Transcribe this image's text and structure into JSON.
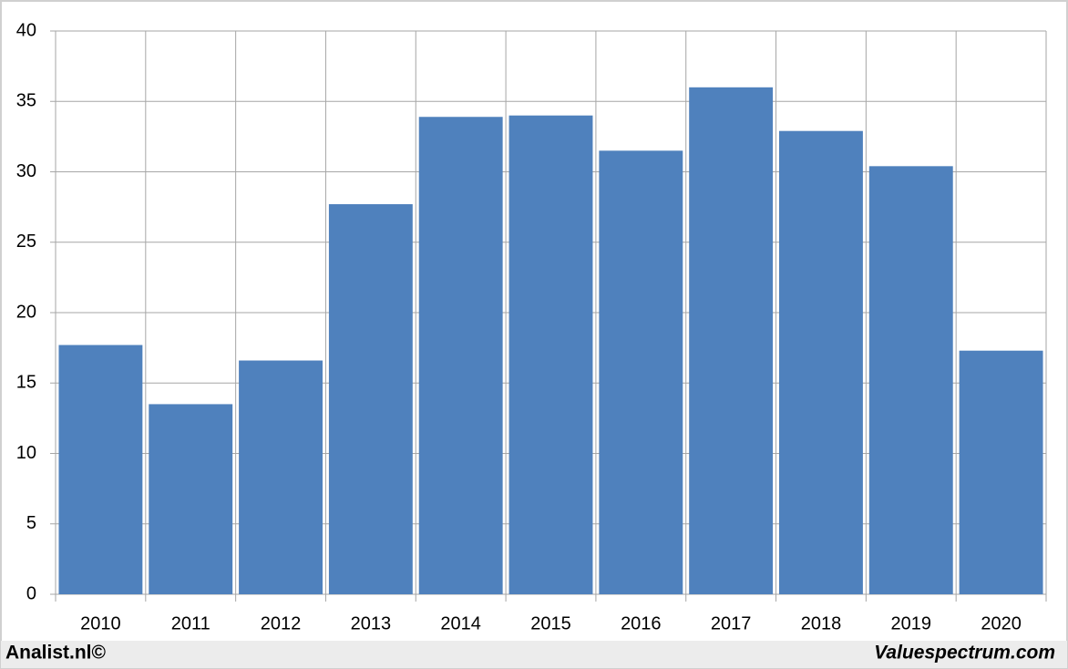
{
  "chart_data": {
    "type": "bar",
    "categories": [
      "2010",
      "2011",
      "2012",
      "2013",
      "2014",
      "2015",
      "2016",
      "2017",
      "2018",
      "2019",
      "2020"
    ],
    "values": [
      17.7,
      13.5,
      16.6,
      27.7,
      33.9,
      34.0,
      31.5,
      36.0,
      32.9,
      30.4,
      17.3
    ],
    "color": "#4f81bd",
    "ylim": [
      0,
      40
    ],
    "yticks": [
      0,
      5,
      10,
      15,
      20,
      25,
      30,
      35,
      40
    ],
    "grid": true,
    "annotations": [
      "Analist.nl©",
      "Valuespectrum.com"
    ]
  }
}
